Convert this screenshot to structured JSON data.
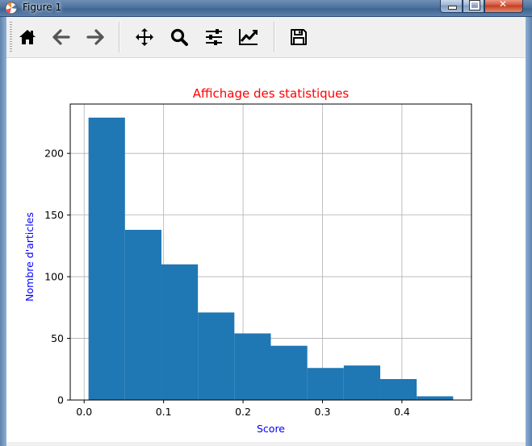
{
  "window": {
    "title": "Figure 1"
  },
  "toolbar": {
    "buttons": [
      {
        "name": "home-icon",
        "label": "Home"
      },
      {
        "name": "back-arrow-icon",
        "label": "Back"
      },
      {
        "name": "forward-arrow-icon",
        "label": "Forward"
      },
      {
        "name": "pan-move-icon",
        "label": "Pan"
      },
      {
        "name": "zoom-magnifier-icon",
        "label": "Zoom"
      },
      {
        "name": "subplots-sliders-icon",
        "label": "Subplots"
      },
      {
        "name": "edit-axis-curve-icon",
        "label": "Customize"
      },
      {
        "name": "save-floppy-icon",
        "label": "Save"
      }
    ]
  },
  "chart_data": {
    "type": "bar",
    "title": "Affichage des statistiques",
    "xlabel": "Score",
    "ylabel": "Nombre d'articles",
    "bin_edges": [
      0.0055,
      0.0514,
      0.0973,
      0.1432,
      0.1891,
      0.235,
      0.2809,
      0.3268,
      0.3727,
      0.4186,
      0.4645
    ],
    "values": [
      229,
      138,
      110,
      71,
      54,
      44,
      26,
      28,
      17,
      3
    ],
    "xlim": [
      -0.0175,
      0.4875
    ],
    "ylim": [
      0,
      240
    ],
    "xticks": [
      0.0,
      0.1,
      0.2,
      0.3,
      0.4
    ],
    "xtick_labels": [
      "0.0",
      "0.1",
      "0.2",
      "0.3",
      "0.4"
    ],
    "yticks": [
      0,
      50,
      100,
      150,
      200
    ],
    "ytick_labels": [
      "0",
      "50",
      "100",
      "150",
      "200"
    ],
    "grid": true,
    "bar_color": "#1f77b4",
    "title_color": "#ff0000",
    "label_color": "#0000ff"
  }
}
